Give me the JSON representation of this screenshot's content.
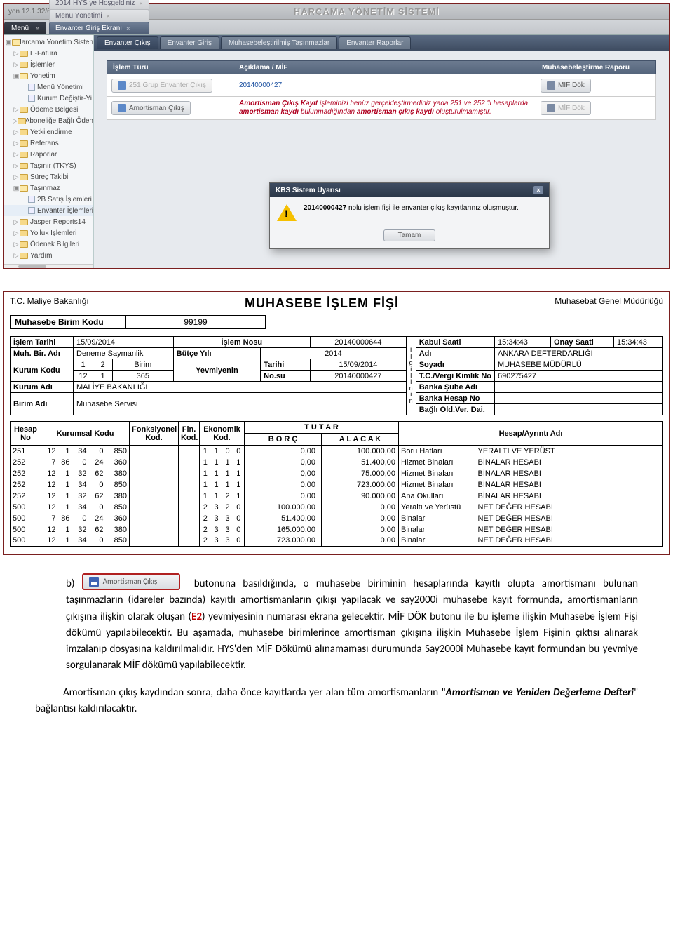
{
  "screenshot": {
    "version": "yon 12.1.32/62.250",
    "systemTitle": "HARCAMA YÖNETİM SİSTEMİ",
    "menuBtn": "Menü",
    "topTabs": [
      {
        "label": "2014 HYS ye Hoşgeldiniz",
        "active": false
      },
      {
        "label": "Menü Yönetimi",
        "active": false
      },
      {
        "label": "Envanter Giriş Ekranı",
        "active": true
      }
    ],
    "sidebar": {
      "root": "Harcama Yonetim Sisten",
      "items": [
        {
          "label": "E-Fatura",
          "lvl": 1,
          "tw": "▷",
          "icon": "fold"
        },
        {
          "label": "İşlemler",
          "lvl": 1,
          "tw": "▷",
          "icon": "fold"
        },
        {
          "label": "Yonetim",
          "lvl": 1,
          "tw": "▣",
          "icon": "fold",
          "open": true
        },
        {
          "label": "Menü Yönetimi",
          "lvl": 2,
          "tw": "",
          "icon": "pg"
        },
        {
          "label": "Kurum Değiştir-Yi",
          "lvl": 2,
          "tw": "",
          "icon": "pg"
        },
        {
          "label": "Ödeme Belgesi",
          "lvl": 1,
          "tw": "▷",
          "icon": "fold"
        },
        {
          "label": "Aboneliğe Bağlı Öden",
          "lvl": 1,
          "tw": "▷",
          "icon": "fold"
        },
        {
          "label": "Yetkilendirme",
          "lvl": 1,
          "tw": "▷",
          "icon": "fold"
        },
        {
          "label": "Referans",
          "lvl": 1,
          "tw": "▷",
          "icon": "fold"
        },
        {
          "label": "Raporlar",
          "lvl": 1,
          "tw": "▷",
          "icon": "fold"
        },
        {
          "label": "Taşınır (TKYS)",
          "lvl": 1,
          "tw": "▷",
          "icon": "fold"
        },
        {
          "label": "Süreç Takibi",
          "lvl": 1,
          "tw": "▷",
          "icon": "fold"
        },
        {
          "label": "Taşınmaz",
          "lvl": 1,
          "tw": "▣",
          "icon": "fold",
          "open": true
        },
        {
          "label": "2B Satış İşlemleri",
          "lvl": 2,
          "tw": "",
          "icon": "pg"
        },
        {
          "label": "Envanter İşlemleri",
          "lvl": 2,
          "tw": "",
          "icon": "pg",
          "sel": true
        },
        {
          "label": "Jasper Reports14",
          "lvl": 1,
          "tw": "▷",
          "icon": "fold"
        },
        {
          "label": "Yolluk İşlemleri",
          "lvl": 1,
          "tw": "▷",
          "icon": "fold"
        },
        {
          "label": "Ödenek Bilgileri",
          "lvl": 1,
          "tw": "▷",
          "icon": "fold"
        },
        {
          "label": "Yardım",
          "lvl": 1,
          "tw": "▷",
          "icon": "fold"
        }
      ]
    },
    "innerTabs": [
      "Envanter Çıkış",
      "Envanter Giriş",
      "Muhasebeleştirilmiş Taşınmazlar",
      "Envanter Raporlar"
    ],
    "grid": {
      "h1": "İşlem Türü",
      "h2": "Açıklama / MİF",
      "h3": "Muhasebeleştirme Raporu",
      "rows": [
        {
          "btn": "251 Grup Envanter Çıkış",
          "aciklama": "20140000427",
          "mif": "MİF Dök",
          "dimBtn": true,
          "dimMif": false,
          "red": false
        },
        {
          "btn": "Amortisman Çıkış",
          "aciklama": "Amortisman Çıkış Kayıt işleminizi henüz gerçekleştirmediniz yada 251 ve 252 'li hesaplarda amortisman kaydı bulunmadığından amortisman çıkış kaydı oluşturulmamıştır.",
          "mif": "MİF Dök",
          "dimBtn": false,
          "dimMif": true,
          "red": true
        }
      ]
    },
    "modal": {
      "title": "KBS Sistem Uyarısı",
      "textBold": "20140000427",
      "textRest": " nolu işlem fişi ile envanter çıkış kayıtlarınız oluşmuştur.",
      "btn": "Tamam"
    }
  },
  "form": {
    "left": "T.C. Maliye Bakanlığı",
    "right": "Muhasebat Genel Müdürlüğü",
    "title": "MUHASEBE  İŞLEM   FİŞİ",
    "mbkLbl": "Muhasebe Birim Kodu",
    "mbkVal": "99199",
    "row1": {
      "islemTarihiLbl": "İşlem Tarihi",
      "islemTarihi": "15/09/2014",
      "islemNosuLbl": "İşlem Nosu",
      "islemNosu": "20140000644",
      "kabulSaatiLbl": "Kabul  Saati",
      "kabulSaati": "15:34:43",
      "onaySaatiLbl": "Onay  Saati",
      "onaySaati": "15:34:43"
    },
    "left2": {
      "muhBirAdiLbl": "Muh. Bir. Adı",
      "muhBirAdi": "Deneme Saymanlik",
      "kurumKoduLbl": "Kurum Kodu",
      "kk1": "1",
      "kk2": "2",
      "kk3": "Birim",
      "kk4": "12",
      "kk5": "1",
      "kk6": "365",
      "kurumAdiLbl": "Kurum Adı",
      "kurumAdi": "MALİYE BAKANLIĞI",
      "birimAdiLbl": "Birim Adı",
      "birimAdi": "Muhasebe Servisi"
    },
    "mid": {
      "butceYiliLbl": "Bütçe Yılı",
      "butceYili": "2014",
      "yevLbl": "Yevmiyenin",
      "tarihiLbl": "Tarihi",
      "tarihi": "15/09/2014",
      "nosuLbl": "No.su",
      "nosu": "20140000427"
    },
    "ilgili": {
      "rot": "İlgilinin",
      "adiLbl": "Adı",
      "adi": "ANKARA DEFTERDARLIĞI",
      "soyadiLbl": "Soyadı",
      "soyadi": "MUHASEBE MÜDÜRLÜ",
      "tcLbl": "T.C./Vergi Kimlik No",
      "tc": "690275427",
      "bankaSubeLbl": "Banka Şube Adı",
      "bankaSube": "",
      "bankaHesapLbl": "Banka Hesap No",
      "bankaHesap": "",
      "bagliLbl": "Bağlı Old.Ver. Dai.",
      "bagli": ""
    },
    "ledger": {
      "h": {
        "hesapNo": "Hesap No",
        "kurumsal": "Kurumsal Kodu",
        "fonk": "Fonksiyonel Kod.",
        "fin": "Fin. Kod.",
        "eko": "Ekonomik Kod.",
        "tutar": "T  U  T  A  R",
        "borc": "B  O  R  Ç",
        "alacak": "A  L  A  C  A  K",
        "hesapAdi": "Hesap/Ayrıntı Adı"
      },
      "rows": [
        {
          "hn": "251",
          "kk": [
            "12",
            "1",
            "34",
            "0",
            "850"
          ],
          "ek": [
            "1",
            "1",
            "0",
            "0"
          ],
          "borc": "0,00",
          "alacak": "100.000,00",
          "ad1": "Boru Hatları",
          "ad2": "YERALTI VE YERÜST"
        },
        {
          "hn": "252",
          "kk": [
            "7",
            "86",
            "0",
            "24",
            "360"
          ],
          "ek": [
            "1",
            "1",
            "1",
            "1"
          ],
          "borc": "0,00",
          "alacak": "51.400,00",
          "ad1": "Hizmet Binaları",
          "ad2": "BİNALAR HESABI"
        },
        {
          "hn": "252",
          "kk": [
            "12",
            "1",
            "32",
            "62",
            "380"
          ],
          "ek": [
            "1",
            "1",
            "1",
            "1"
          ],
          "borc": "0,00",
          "alacak": "75.000,00",
          "ad1": "Hizmet Binaları",
          "ad2": "BİNALAR HESABI"
        },
        {
          "hn": "252",
          "kk": [
            "12",
            "1",
            "34",
            "0",
            "850"
          ],
          "ek": [
            "1",
            "1",
            "1",
            "1"
          ],
          "borc": "0,00",
          "alacak": "723.000,00",
          "ad1": "Hizmet Binaları",
          "ad2": "BİNALAR HESABI"
        },
        {
          "hn": "252",
          "kk": [
            "12",
            "1",
            "32",
            "62",
            "380"
          ],
          "ek": [
            "1",
            "1",
            "2",
            "1"
          ],
          "borc": "0,00",
          "alacak": "90.000,00",
          "ad1": "Ana Okulları",
          "ad2": "BİNALAR HESABI"
        },
        {
          "hn": "500",
          "kk": [
            "12",
            "1",
            "34",
            "0",
            "850"
          ],
          "ek": [
            "2",
            "3",
            "2",
            "0"
          ],
          "borc": "100.000,00",
          "alacak": "0,00",
          "ad1": "Yeraltı ve Yerüstü",
          "ad2": "NET DEĞER HESABI"
        },
        {
          "hn": "500",
          "kk": [
            "7",
            "86",
            "0",
            "24",
            "360"
          ],
          "ek": [
            "2",
            "3",
            "3",
            "0"
          ],
          "borc": "51.400,00",
          "alacak": "0,00",
          "ad1": "Binalar",
          "ad2": "NET DEĞER HESABI"
        },
        {
          "hn": "500",
          "kk": [
            "12",
            "1",
            "32",
            "62",
            "380"
          ],
          "ek": [
            "2",
            "3",
            "3",
            "0"
          ],
          "borc": "165.000,00",
          "alacak": "0,00",
          "ad1": "Binalar",
          "ad2": "NET DEĞER HESABI"
        },
        {
          "hn": "500",
          "kk": [
            "12",
            "1",
            "34",
            "0",
            "850"
          ],
          "ek": [
            "2",
            "3",
            "3",
            "0"
          ],
          "borc": "723.000,00",
          "alacak": "0,00",
          "ad1": "Binalar",
          "ad2": "NET DEĞER HESABI"
        }
      ]
    }
  },
  "paragraph": {
    "letter": "b)",
    "btnLabel": "Amortisman Çıkış",
    "body": " butonuna basıldığında, o muhasebe biriminin hesaplarında kayıtlı olupta amortismanı bulunan taşınmazların (idareler bazında) kayıtlı amortismanların çıkışı yapılacak ve say2000i muhasebe kayıt formunda, amortismanların çıkışına ilişkin olarak oluşan (",
    "e2": "E2",
    "body2": ") yevmiyesinin numarası ekrana gelecektir. MİF DÖK butonu ile bu işleme ilişkin Muhasebe İşlem Fişi dökümü yapılabilecektir. Bu aşamada, muhasebe birimlerince amortisman çıkışına ilişkin Muhasebe İşlem Fişinin çıktısı alınarak imzalanıp dosyasına kaldırılmalıdır. HYS'den MİF Dökümü alınamaması durumunda Say2000i Muhasebe kayıt formundan bu yevmiye sorgulanarak MİF dökümü yapılabilecektir.",
    "last1": "Amortisman çıkış kaydından sonra, daha önce kayıtlarda yer alan tüm amortismanların \"",
    "lastItalic": "Amortisman ve Yeniden Değerleme Defteri",
    "last2": "\" bağlantısı kaldırılacaktır."
  }
}
